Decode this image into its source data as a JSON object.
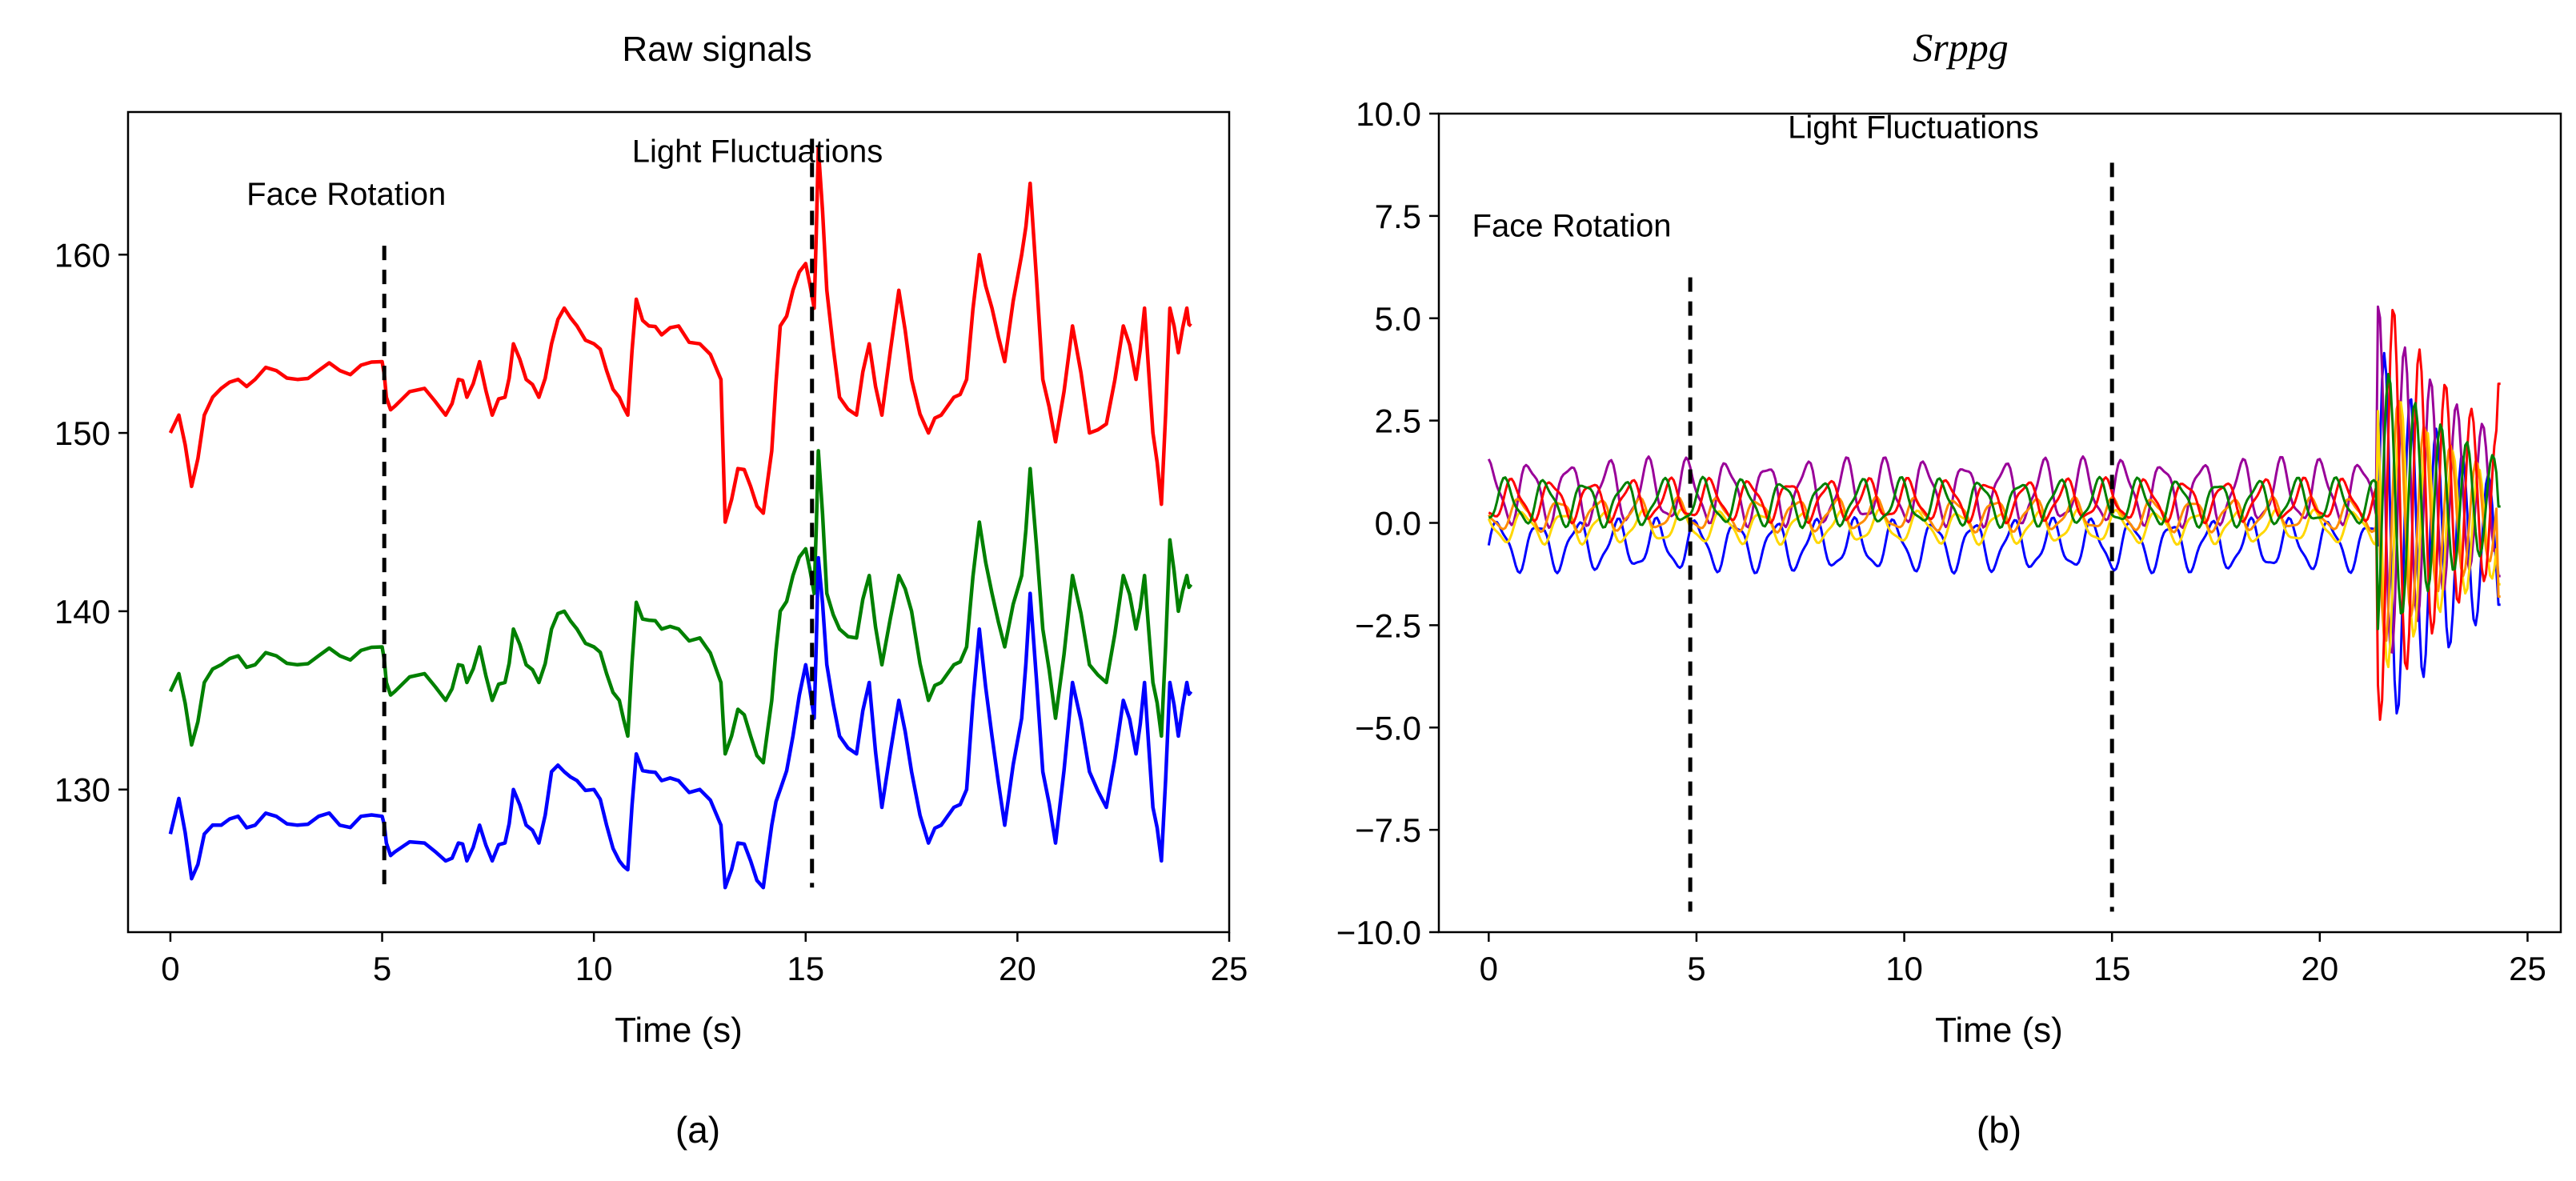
{
  "figure": {
    "caption_a": "(a)",
    "caption_b": "(b)"
  },
  "chart_data": [
    {
      "type": "line",
      "title": "Raw signals",
      "xlabel": "Time (s)",
      "ylabel": "",
      "xlim": [
        -1,
        25
      ],
      "ylim": [
        122,
        168
      ],
      "xticks": [
        0,
        5,
        10,
        15,
        20,
        25
      ],
      "xtick_labels": [
        "0",
        "5",
        "10",
        "15",
        "20",
        "25"
      ],
      "yticks": [
        130,
        140,
        150,
        160
      ],
      "ytick_labels": [
        "130",
        "140",
        "150",
        "160"
      ],
      "annotations": [
        {
          "text": "Face Rotation",
          "x": 1.8,
          "y": 162.8
        },
        {
          "text": "Light Fluctuations",
          "x": 10.9,
          "y": 165.2
        }
      ],
      "vlines": [
        {
          "x": 5.05,
          "ymin": 124.5,
          "ymax": 160.5,
          "style": "dashed"
        },
        {
          "x": 15.15,
          "ymin": 124.5,
          "ymax": 166.5,
          "style": "dashed"
        }
      ],
      "series": [
        {
          "name": "red",
          "color": "#ff0000",
          "x": [
            0,
            0.2,
            0.5,
            0.8,
            1.2,
            1.6,
            2,
            2.5,
            3,
            3.5,
            4,
            4.5,
            5,
            5.1,
            5.3,
            6,
            6.5,
            6.8,
            7,
            7.3,
            7.6,
            7.9,
            8.1,
            8.4,
            8.7,
            9,
            9.3,
            9.6,
            10,
            10.3,
            10.6,
            10.8,
            11,
            11.3,
            11.6,
            12,
            12.5,
            13,
            13.1,
            13.4,
            13.7,
            14,
            14.2,
            14.4,
            14.7,
            15,
            15.2,
            15.3,
            15.5,
            15.8,
            16.2,
            16.5,
            16.8,
            17.2,
            17.5,
            17.9,
            18.2,
            18.5,
            18.8,
            19.1,
            19.4,
            19.7,
            20.1,
            20.3,
            20.6,
            20.9,
            21.3,
            21.7,
            22.1,
            22.5,
            22.8,
            23,
            23.2,
            23.4,
            23.6,
            23.8,
            24,
            24.1
          ],
          "values": [
            150,
            151,
            147,
            151,
            152.5,
            153,
            153,
            153.5,
            153,
            153.5,
            153.5,
            153.8,
            154,
            152,
            151.5,
            152.5,
            151,
            153,
            152,
            154,
            151,
            152,
            155,
            153,
            152,
            155,
            157,
            156,
            155,
            153.5,
            152,
            151,
            157.5,
            156,
            155.5,
            156,
            155,
            153,
            145,
            148,
            147,
            145.5,
            149,
            156,
            158,
            159.5,
            157,
            166,
            158,
            152,
            151,
            155,
            151,
            158,
            153,
            150,
            151,
            152,
            153,
            160,
            157,
            154,
            160,
            164,
            153,
            149.5,
            156,
            150,
            150.5,
            156,
            153,
            157,
            150,
            146,
            157,
            154.5,
            157,
            156
          ]
        },
        {
          "name": "green",
          "color": "#008000",
          "x": [
            0,
            0.2,
            0.5,
            0.8,
            1.2,
            1.6,
            2,
            2.5,
            3,
            3.5,
            4,
            4.5,
            5,
            5.1,
            5.3,
            6,
            6.5,
            6.8,
            7,
            7.3,
            7.6,
            7.9,
            8.1,
            8.4,
            8.7,
            9,
            9.3,
            9.6,
            10,
            10.3,
            10.6,
            10.8,
            11,
            11.3,
            11.6,
            12,
            12.5,
            13,
            13.1,
            13.4,
            13.7,
            14,
            14.2,
            14.4,
            14.7,
            15,
            15.2,
            15.3,
            15.5,
            15.8,
            16.2,
            16.5,
            16.8,
            17.2,
            17.5,
            17.9,
            18.2,
            18.5,
            18.8,
            19.1,
            19.4,
            19.7,
            20.1,
            20.3,
            20.6,
            20.9,
            21.3,
            21.7,
            22.1,
            22.5,
            22.8,
            23,
            23.2,
            23.4,
            23.6,
            23.8,
            24,
            24.1
          ],
          "values": [
            135.5,
            136.5,
            132.5,
            136,
            137,
            137.5,
            137,
            137.5,
            137,
            137.5,
            137.5,
            137.8,
            138,
            136,
            135.5,
            136.5,
            135,
            137,
            136,
            138,
            135,
            136,
            139,
            137,
            136,
            139,
            140,
            139,
            138,
            136.5,
            135,
            133,
            140.5,
            139.5,
            139,
            139,
            138.5,
            136,
            132,
            134.5,
            133,
            131.5,
            135,
            140,
            142,
            143.5,
            141,
            149,
            141,
            139,
            138.5,
            142,
            137,
            142,
            140,
            135,
            136,
            137,
            138,
            145,
            141,
            138,
            142,
            148,
            139,
            134,
            142,
            137,
            136,
            142,
            139,
            142,
            136,
            133,
            144,
            140,
            142,
            141.5
          ]
        },
        {
          "name": "blue",
          "color": "#0000ff",
          "x": [
            0,
            0.2,
            0.5,
            0.8,
            1.2,
            1.6,
            2,
            2.5,
            3,
            3.5,
            4,
            4.5,
            5,
            5.1,
            5.3,
            6,
            6.5,
            6.8,
            7,
            7.3,
            7.6,
            7.9,
            8.1,
            8.4,
            8.7,
            9,
            9.3,
            9.6,
            10,
            10.3,
            10.6,
            10.8,
            11,
            11.3,
            11.6,
            12,
            12.5,
            13,
            13.1,
            13.4,
            13.7,
            14,
            14.2,
            14.4,
            14.7,
            15,
            15.2,
            15.3,
            15.5,
            15.8,
            16.2,
            16.5,
            16.8,
            17.2,
            17.5,
            17.9,
            18.2,
            18.5,
            18.8,
            19.1,
            19.4,
            19.7,
            20.1,
            20.3,
            20.6,
            20.9,
            21.3,
            21.7,
            22.1,
            22.5,
            22.8,
            23,
            23.2,
            23.4,
            23.6,
            23.8,
            24,
            24.1
          ],
          "values": [
            127.5,
            129.5,
            125,
            127.5,
            128,
            128.5,
            128,
            128.5,
            128,
            128.5,
            128,
            128.5,
            128.5,
            127,
            126.5,
            127,
            126,
            127,
            126,
            128,
            126,
            127,
            130,
            128,
            127,
            131,
            131,
            130.5,
            130,
            128,
            126,
            125.5,
            132,
            131,
            130.5,
            130.5,
            130,
            128,
            124.5,
            127,
            126,
            124.5,
            128,
            130,
            133,
            137,
            134,
            143,
            137,
            133,
            132,
            136,
            129,
            135,
            131,
            127,
            128,
            129,
            130,
            139,
            133,
            128,
            134,
            141,
            131,
            127,
            136,
            131,
            129,
            135,
            132,
            136,
            129,
            126,
            136,
            133,
            136,
            135.5
          ]
        }
      ]
    },
    {
      "type": "line",
      "title": "Srppg",
      "xlabel": "Time (s)",
      "ylabel": "",
      "xlim": [
        -1.2,
        25.8
      ],
      "ylim": [
        -10,
        10
      ],
      "xticks": [
        0,
        5,
        10,
        15,
        20,
        25
      ],
      "xtick_labels": [
        "0",
        "5",
        "10",
        "15",
        "20",
        "25"
      ],
      "yticks": [
        -10,
        -7.5,
        -5,
        -2.5,
        0,
        2.5,
        5,
        7.5,
        10
      ],
      "ytick_labels": [
        "−10.0",
        "−7.5",
        "−5.0",
        "−2.5",
        "0.0",
        "2.5",
        "5.0",
        "7.5",
        "10.0"
      ],
      "annotations": [
        {
          "text": "Face Rotation",
          "x": -0.4,
          "y": 7.0
        },
        {
          "text": "Light Fluctuations",
          "x": 7.2,
          "y": 9.4
        }
      ],
      "vlines": [
        {
          "x": 4.85,
          "ymin": -9.5,
          "ymax": 6.0,
          "style": "dashed"
        },
        {
          "x": 15.0,
          "ymin": -9.5,
          "ymax": 8.8,
          "style": "dashed"
        }
      ],
      "series": [
        {
          "name": "blue",
          "color": "#0000ff",
          "base": -0.55,
          "amp": 0.55,
          "burst_amp": 5.0,
          "phase": 0.0,
          "end": -2.0
        },
        {
          "name": "purple",
          "color": "#990099",
          "base": 0.75,
          "amp": 0.7,
          "burst_amp": 4.6,
          "phase": 1.4,
          "end": -1.3
        },
        {
          "name": "yellow",
          "color": "#ffd700",
          "base": -0.1,
          "amp": 0.35,
          "burst_amp": 3.8,
          "phase": 2.3,
          "end": -1.5
        },
        {
          "name": "orange",
          "color": "#ff8c00",
          "base": 0.2,
          "amp": 0.35,
          "burst_amp": 3.4,
          "phase": 2.9,
          "end": -1.8
        },
        {
          "name": "red",
          "color": "#ff0000",
          "base": 0.55,
          "amp": 0.45,
          "burst_amp": 5.5,
          "phase": 4.1,
          "end": 3.4
        },
        {
          "name": "green",
          "color": "#008000",
          "base": 0.5,
          "amp": 0.5,
          "burst_amp": 3.5,
          "phase": 5.2,
          "end": 0.4
        }
      ]
    }
  ]
}
